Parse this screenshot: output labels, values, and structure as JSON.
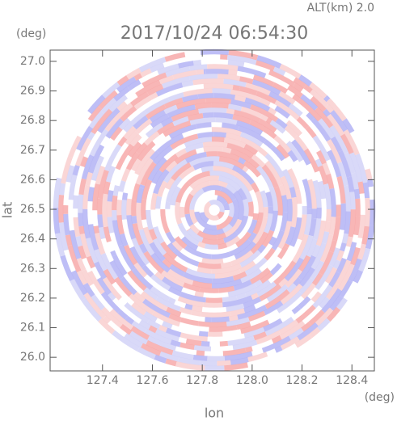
{
  "chart_data": {
    "type": "ppi",
    "title": "2017/10/24 06:54:30",
    "subtitle": "ALT(km) 2.0",
    "x_label": "lon",
    "y_label": "lat",
    "x_unit": "(deg)",
    "y_unit": "(deg)",
    "xlim": [
      127.19,
      128.49
    ],
    "ylim": [
      25.954,
      27.038
    ],
    "xticks": [
      127.4,
      127.6,
      127.8,
      {
        "value": 128,
        "label": "128.0"
      },
      128.2,
      128.4
    ],
    "yticks": [
      {
        "value": 26,
        "label": "26.0"
      },
      26.1,
      26.2,
      26.3,
      26.4,
      26.5,
      26.6,
      26.7,
      26.8,
      26.9,
      {
        "value": 27,
        "label": "27.0"
      }
    ]
  }
}
